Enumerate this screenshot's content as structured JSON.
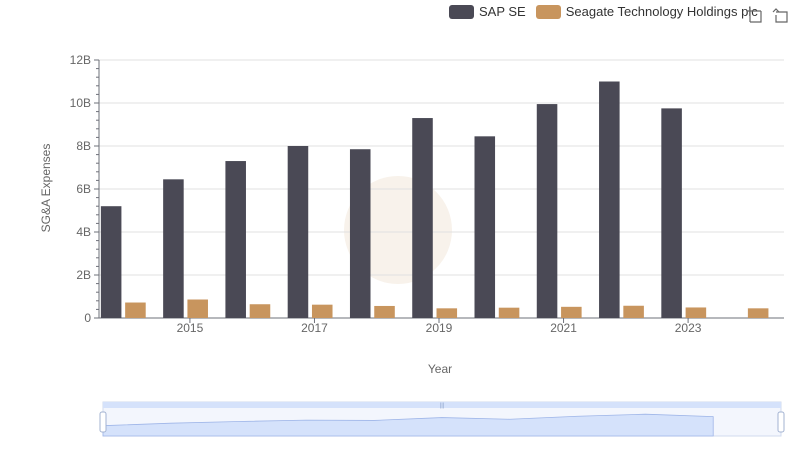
{
  "legend": {
    "items": [
      {
        "label": "SAP SE",
        "color": "#4a4955"
      },
      {
        "label": "Seagate Technology Holdings plc",
        "color": "#c8955e"
      }
    ]
  },
  "toolbox": {
    "items": [
      {
        "name": "zoom-icon"
      },
      {
        "name": "zoom-reset-icon"
      }
    ]
  },
  "chart_data": {
    "type": "bar",
    "title": "",
    "xlabel": "Year",
    "ylabel": "SG&A Expenses",
    "categories": [
      2014,
      2015,
      2016,
      2017,
      2018,
      2019,
      2020,
      2021,
      2022,
      2023,
      2024
    ],
    "x_tick_labels": [
      "2015",
      "2017",
      "2019",
      "2021",
      "2023"
    ],
    "y_tick_labels": [
      "0",
      "2B",
      "4B",
      "6B",
      "8B",
      "10B",
      "12B"
    ],
    "ylim": [
      0,
      12000000000
    ],
    "grid": true,
    "legend_position": "top-right",
    "series": [
      {
        "name": "SAP SE",
        "color": "#4a4955",
        "values": [
          5200000000,
          6450000000,
          7300000000,
          8000000000,
          7850000000,
          9300000000,
          8450000000,
          9950000000,
          11000000000,
          9750000000,
          null
        ]
      },
      {
        "name": "Seagate Technology Holdings plc",
        "color": "#c8955e",
        "values": [
          720000000,
          860000000,
          640000000,
          620000000,
          560000000,
          450000000,
          480000000,
          520000000,
          570000000,
          490000000,
          450000000
        ]
      }
    ],
    "data_zoom": {
      "range": [
        0,
        100
      ]
    }
  }
}
